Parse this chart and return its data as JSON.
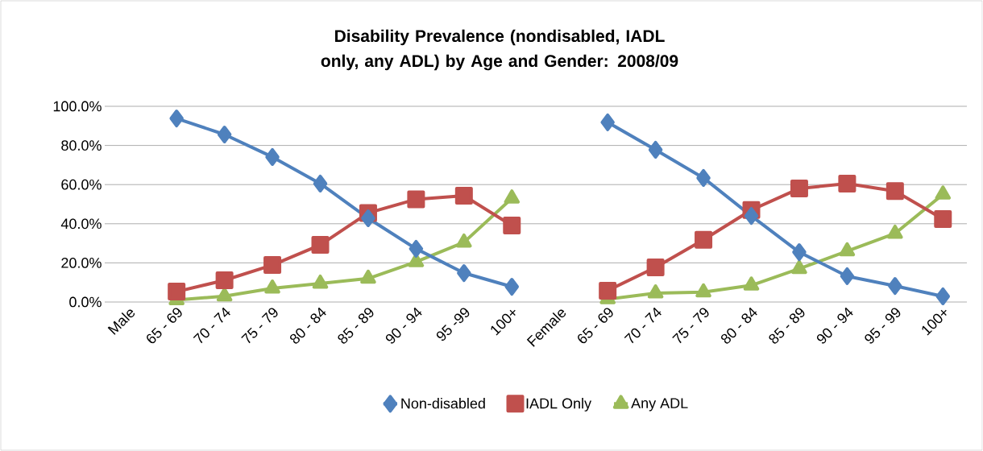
{
  "chart_data": {
    "type": "line",
    "title": "Disability Prevalence (nondisabled, IADL only, any ADL) by Age and Gender: 2008/09",
    "categories": [
      "Male",
      "65 - 69",
      "70 - 74",
      "75 - 79",
      "80 - 84",
      "85 - 89",
      "90 - 94",
      "95 -99",
      "100+",
      "Female",
      "65 - 69",
      "70 - 74",
      "75 - 79",
      "80 - 84",
      "85 - 89",
      "90 - 94",
      "95 - 99",
      "100+"
    ],
    "series": [
      {
        "name": "Non-disabled",
        "color": "#4f81bd",
        "marker": "diamond",
        "values": [
          null,
          93.8,
          85.6,
          74.1,
          60.5,
          42.8,
          27.2,
          14.8,
          7.8,
          null,
          91.8,
          77.8,
          63.4,
          44.0,
          25.5,
          13.2,
          8.2,
          2.9
        ]
      },
      {
        "name": "IADL Only",
        "color": "#c0504d",
        "marker": "square",
        "values": [
          null,
          5.3,
          11.1,
          18.9,
          29.2,
          45.5,
          52.5,
          54.3,
          39.1,
          null,
          5.8,
          17.7,
          31.8,
          47.0,
          58.0,
          60.5,
          56.7,
          42.4
        ]
      },
      {
        "name": "Any ADL",
        "color": "#9bbb59",
        "marker": "triangle",
        "values": [
          null,
          1.0,
          3.0,
          7.0,
          9.5,
          12.0,
          20.5,
          30.5,
          53.0,
          null,
          1.5,
          4.5,
          5.0,
          8.5,
          17.0,
          26.0,
          35.0,
          55.0
        ]
      }
    ],
    "ylim": [
      0,
      100
    ],
    "yticks": [
      {
        "value": 0,
        "label": "0.0%"
      },
      {
        "value": 20,
        "label": "20.0%"
      },
      {
        "value": 40,
        "label": "40.0%"
      },
      {
        "value": 60,
        "label": "60.0%"
      },
      {
        "value": 80,
        "label": "80.0%"
      },
      {
        "value": 100,
        "label": "100.0%"
      }
    ],
    "grid": "y",
    "legend": "bottom",
    "line_style": "solid"
  }
}
